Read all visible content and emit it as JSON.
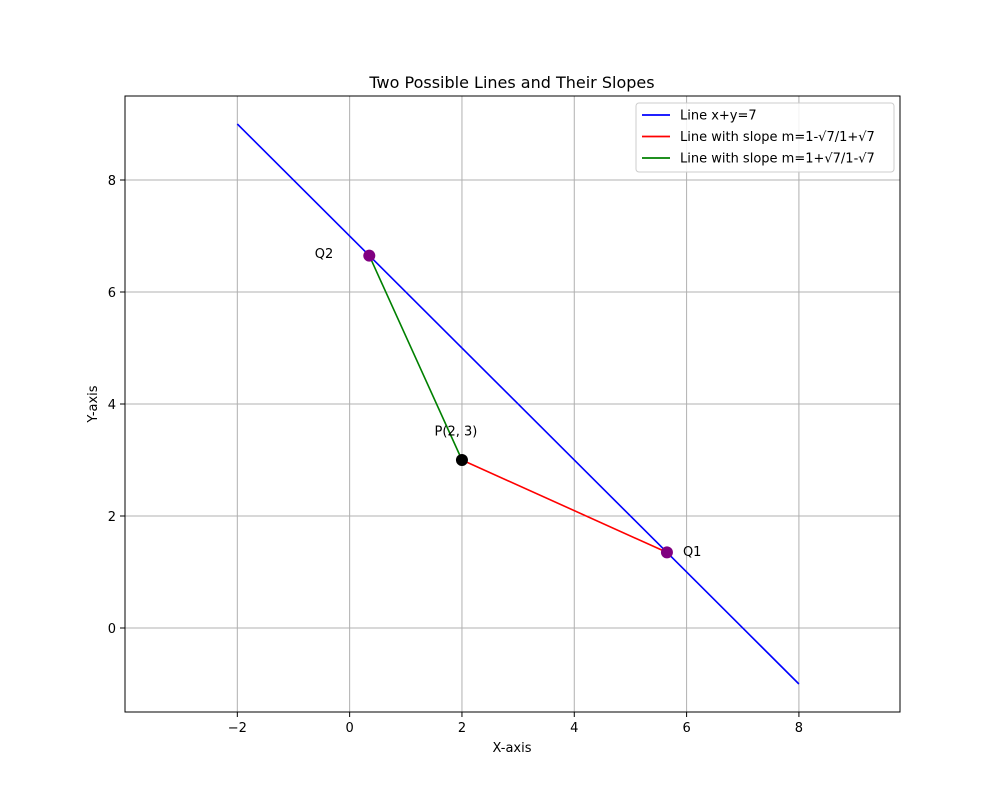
{
  "chart_data": {
    "type": "line",
    "title": "Two Possible Lines and Their Slopes",
    "xlabel": "X-axis",
    "ylabel": "Y-axis",
    "xlim": [
      -4,
      9.8
    ],
    "ylim": [
      -1.5,
      9.5
    ],
    "xticks": [
      -2,
      0,
      2,
      4,
      6,
      8
    ],
    "yticks": [
      0,
      2,
      4,
      6,
      8
    ],
    "grid": true,
    "legend_position": "top-right",
    "series": [
      {
        "name": "Line x+y=7",
        "color": "#0000ff",
        "x": [
          -2,
          8
        ],
        "y": [
          9,
          -1
        ]
      },
      {
        "name": "Line with slope m=1-√7/1+√7",
        "color": "#ff0000",
        "x": [
          2,
          5.65
        ],
        "y": [
          3,
          1.35
        ]
      },
      {
        "name": "Line with slope m=1+√7/1-√7",
        "color": "#008000",
        "x": [
          2,
          0.35
        ],
        "y": [
          3,
          6.65
        ]
      }
    ],
    "points": [
      {
        "label": "P(2, 3)",
        "x": 2,
        "y": 3,
        "color": "#000000"
      },
      {
        "label": "Q1",
        "x": 5.65,
        "y": 1.35,
        "color": "#800080"
      },
      {
        "label": "Q2",
        "x": 0.35,
        "y": 6.65,
        "color": "#800080"
      }
    ]
  }
}
